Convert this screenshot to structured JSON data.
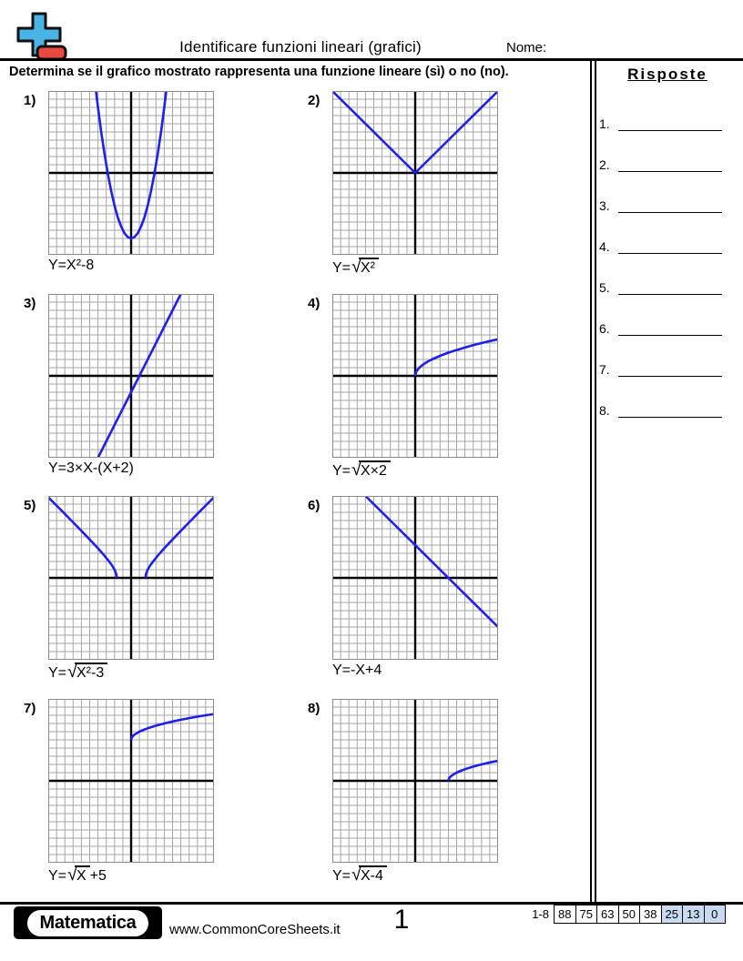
{
  "header": {
    "title": "Identificare funzioni lineari (grafici)",
    "name_label": "Nome:",
    "logo_icon": "plus-minus-math-icon"
  },
  "instruction": "Determina se il grafico mostrato rappresenta una funzione lineare (sì) o no (no).",
  "answers": {
    "title": "Risposte",
    "items": [
      "1.",
      "2.",
      "3.",
      "4.",
      "5.",
      "6.",
      "7.",
      "8."
    ]
  },
  "problems": [
    {
      "label": "1)",
      "equation": [
        {
          "t": "text",
          "v": "Y=X²-8"
        }
      ]
    },
    {
      "label": "2)",
      "equation": [
        {
          "t": "text",
          "v": "Y= "
        },
        {
          "t": "rad",
          "v": "X²"
        }
      ]
    },
    {
      "label": "3)",
      "equation": [
        {
          "t": "text",
          "v": "Y=3×X-(X+2)"
        }
      ]
    },
    {
      "label": "4)",
      "equation": [
        {
          "t": "text",
          "v": "Y="
        },
        {
          "t": "rad",
          "v": "X×2"
        }
      ]
    },
    {
      "label": "5)",
      "equation": [
        {
          "t": "text",
          "v": "Y= "
        },
        {
          "t": "rad",
          "v": "X²-3"
        }
      ]
    },
    {
      "label": "6)",
      "equation": [
        {
          "t": "text",
          "v": "Y=-X+4"
        }
      ]
    },
    {
      "label": "7)",
      "equation": [
        {
          "t": "text",
          "v": "Y="
        },
        {
          "t": "rad",
          "v": "X"
        },
        {
          "t": "text",
          "v": " +5"
        }
      ]
    },
    {
      "label": "8)",
      "equation": [
        {
          "t": "text",
          "v": "Y="
        },
        {
          "t": "rad",
          "v": "X-4"
        }
      ]
    }
  ],
  "chart_data": [
    {
      "n": 1,
      "type": "line",
      "title": "Y=X²-8",
      "xlim": [
        -10,
        10
      ],
      "ylim": [
        -10,
        10
      ],
      "grid_step": 1,
      "legend": false,
      "series": [
        {
          "name": "y=x^2-8",
          "points": [
            [
              -4.24,
              10
            ],
            [
              -4,
              8
            ],
            [
              -3.6,
              4.96
            ],
            [
              -3.2,
              2.24
            ],
            [
              -2.8,
              -0.16
            ],
            [
              -2.4,
              -2.24
            ],
            [
              -2,
              -4
            ],
            [
              -1.6,
              -5.44
            ],
            [
              -1.2,
              -6.56
            ],
            [
              -0.8,
              -7.36
            ],
            [
              -0.4,
              -7.84
            ],
            [
              0,
              -8
            ],
            [
              0.4,
              -7.84
            ],
            [
              0.8,
              -7.36
            ],
            [
              1.2,
              -6.56
            ],
            [
              1.6,
              -5.44
            ],
            [
              2,
              -4
            ],
            [
              2.4,
              -2.24
            ],
            [
              2.8,
              -0.16
            ],
            [
              3.2,
              2.24
            ],
            [
              3.6,
              4.96
            ],
            [
              4,
              8
            ],
            [
              4.24,
              10
            ]
          ]
        }
      ]
    },
    {
      "n": 2,
      "type": "line",
      "title": "Y= √X²",
      "xlim": [
        -10,
        10
      ],
      "ylim": [
        -10,
        10
      ],
      "grid_step": 1,
      "legend": false,
      "series": [
        {
          "name": "y=|x|",
          "points": [
            [
              -10,
              10
            ],
            [
              0,
              0
            ],
            [
              10,
              10
            ]
          ]
        }
      ]
    },
    {
      "n": 3,
      "type": "line",
      "title": "Y=3×X-(X+2)",
      "xlim": [
        -10,
        10
      ],
      "ylim": [
        -10,
        10
      ],
      "grid_step": 1,
      "legend": false,
      "series": [
        {
          "name": "y=2x-2",
          "points": [
            [
              -4,
              -10
            ],
            [
              6,
              10
            ]
          ]
        }
      ]
    },
    {
      "n": 4,
      "type": "line",
      "title": "Y=√X×2",
      "xlim": [
        -10,
        10
      ],
      "ylim": [
        -10,
        10
      ],
      "grid_step": 1,
      "legend": false,
      "series": [
        {
          "name": "y=sqrt(2x)",
          "points": [
            [
              0,
              0
            ],
            [
              0.1,
              0.45
            ],
            [
              0.3,
              0.77
            ],
            [
              0.6,
              1.1
            ],
            [
              1,
              1.41
            ],
            [
              1.5,
              1.73
            ],
            [
              2,
              2
            ],
            [
              3,
              2.45
            ],
            [
              4,
              2.83
            ],
            [
              5,
              3.16
            ],
            [
              6,
              3.46
            ],
            [
              7,
              3.74
            ],
            [
              8,
              4
            ],
            [
              9,
              4.24
            ],
            [
              10,
              4.47
            ]
          ]
        }
      ]
    },
    {
      "n": 5,
      "type": "line",
      "title": "Y= √X²-3",
      "xlim": [
        -10,
        10
      ],
      "ylim": [
        -10,
        10
      ],
      "grid_step": 1,
      "legend": false,
      "series": [
        {
          "name": "y=sqrt(x^2-3) left",
          "points": [
            [
              -10,
              9.85
            ],
            [
              -9,
              8.83
            ],
            [
              -8,
              7.81
            ],
            [
              -7,
              6.78
            ],
            [
              -6,
              5.74
            ],
            [
              -5,
              4.69
            ],
            [
              -4,
              3.61
            ],
            [
              -3.2,
              2.69
            ],
            [
              -2.7,
              2.07
            ],
            [
              -2.3,
              1.51
            ],
            [
              -2,
              1
            ],
            [
              -1.8,
              0.49
            ],
            [
              -1.73,
              0
            ]
          ]
        },
        {
          "name": "y=sqrt(x^2-3) right",
          "points": [
            [
              1.73,
              0
            ],
            [
              1.8,
              0.49
            ],
            [
              2,
              1
            ],
            [
              2.3,
              1.51
            ],
            [
              2.7,
              2.07
            ],
            [
              3.2,
              2.69
            ],
            [
              4,
              3.61
            ],
            [
              5,
              4.69
            ],
            [
              6,
              5.74
            ],
            [
              7,
              6.78
            ],
            [
              8,
              7.81
            ],
            [
              9,
              8.83
            ],
            [
              10,
              9.85
            ]
          ]
        }
      ]
    },
    {
      "n": 6,
      "type": "line",
      "title": "Y=-X+4",
      "xlim": [
        -10,
        10
      ],
      "ylim": [
        -10,
        10
      ],
      "grid_step": 1,
      "legend": false,
      "series": [
        {
          "name": "y=-x+4",
          "points": [
            [
              -6,
              10
            ],
            [
              10,
              -6
            ]
          ]
        }
      ]
    },
    {
      "n": 7,
      "type": "line",
      "title": "Y=√X +5",
      "xlim": [
        -10,
        10
      ],
      "ylim": [
        -10,
        10
      ],
      "grid_step": 1,
      "legend": false,
      "series": [
        {
          "name": "y=sqrt(x)+5",
          "points": [
            [
              0,
              5
            ],
            [
              0.1,
              5.32
            ],
            [
              0.3,
              5.55
            ],
            [
              0.6,
              5.77
            ],
            [
              1,
              6
            ],
            [
              1.5,
              6.22
            ],
            [
              2,
              6.41
            ],
            [
              3,
              6.73
            ],
            [
              4,
              7
            ],
            [
              5,
              7.24
            ],
            [
              6,
              7.45
            ],
            [
              7,
              7.65
            ],
            [
              8,
              7.83
            ],
            [
              9,
              8
            ],
            [
              10,
              8.16
            ]
          ]
        }
      ]
    },
    {
      "n": 8,
      "type": "line",
      "title": "Y=√X-4",
      "xlim": [
        -10,
        10
      ],
      "ylim": [
        -10,
        10
      ],
      "grid_step": 1,
      "legend": false,
      "series": [
        {
          "name": "y=sqrt(x-4)",
          "points": [
            [
              4,
              0
            ],
            [
              4.1,
              0.32
            ],
            [
              4.3,
              0.55
            ],
            [
              4.6,
              0.77
            ],
            [
              5,
              1
            ],
            [
              5.5,
              1.22
            ],
            [
              6,
              1.41
            ],
            [
              7,
              1.73
            ],
            [
              8,
              2
            ],
            [
              9,
              2.24
            ],
            [
              10,
              2.45
            ]
          ]
        }
      ]
    }
  ],
  "footer": {
    "brand": "Matematica",
    "url": "www.CommonCoreSheets.it",
    "page": "1",
    "score_range": "1-8",
    "score_cells": [
      {
        "value": "88",
        "highlight": false
      },
      {
        "value": "75",
        "highlight": false
      },
      {
        "value": "63",
        "highlight": false
      },
      {
        "value": "50",
        "highlight": false
      },
      {
        "value": "38",
        "highlight": false
      },
      {
        "value": "25",
        "highlight": true
      },
      {
        "value": "13",
        "highlight": true
      },
      {
        "value": "0",
        "highlight": true
      }
    ]
  },
  "colors": {
    "curve": "#1f1fe8",
    "grid": "#a6a6a6",
    "graph_border": "#8a8a8a",
    "axis": "#000000",
    "logo_plus": "#4ab4e6",
    "logo_minus": "#e84a42",
    "score_highlight": "#c8d9f2"
  }
}
